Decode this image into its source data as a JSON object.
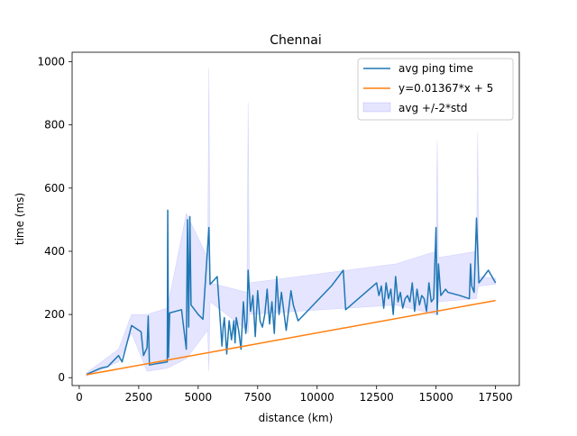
{
  "chart_data": {
    "type": "line",
    "title": "Chennai",
    "xlabel": "distance (km)",
    "ylabel": "time (ms)",
    "xlim": [
      -300,
      18500
    ],
    "ylim": [
      -25,
      1030
    ],
    "x_ticks": [
      0,
      2500,
      5000,
      7500,
      10000,
      12500,
      15000,
      17500
    ],
    "y_ticks": [
      0,
      200,
      400,
      600,
      800,
      1000
    ],
    "grid": false,
    "legend_position": "top-right",
    "series": [
      {
        "name": "avg ping time",
        "color": "#1f77b4",
        "style": "line",
        "x": [
          300,
          600,
          900,
          1200,
          1650,
          1800,
          2200,
          2600,
          2700,
          2850,
          2900,
          2950,
          3300,
          3700,
          3720,
          3750,
          3800,
          4300,
          4500,
          4550,
          4600,
          4650,
          4700,
          5000,
          5200,
          5450,
          5500,
          5800,
          6000,
          6050,
          6100,
          6200,
          6300,
          6400,
          6500,
          6550,
          6600,
          6700,
          6800,
          6900,
          7000,
          7050,
          7100,
          7200,
          7300,
          7400,
          7500,
          7600,
          7700,
          7800,
          7900,
          8000,
          8100,
          8200,
          8300,
          8400,
          8500,
          8700,
          8900,
          9000,
          9200,
          10600,
          11100,
          11200,
          12500,
          12600,
          12700,
          12800,
          12900,
          13000,
          13100,
          13200,
          13300,
          13400,
          13500,
          13600,
          13700,
          13800,
          13900,
          14000,
          14100,
          14200,
          14300,
          14400,
          14500,
          14600,
          14700,
          14800,
          14900,
          15000,
          15050,
          15100,
          15200,
          15300,
          15400,
          15500,
          16000,
          16400,
          16450,
          16500,
          16600,
          16700,
          16800,
          17200,
          17500
        ],
        "y": [
          10,
          20,
          30,
          35,
          70,
          50,
          165,
          145,
          70,
          95,
          195,
          40,
          45,
          50,
          530,
          65,
          205,
          215,
          90,
          500,
          160,
          510,
          230,
          200,
          185,
          475,
          295,
          320,
          100,
          160,
          190,
          75,
          180,
          120,
          180,
          110,
          190,
          150,
          90,
          240,
          140,
          180,
          340,
          210,
          260,
          130,
          275,
          180,
          160,
          200,
          280,
          170,
          240,
          140,
          320,
          200,
          270,
          150,
          275,
          230,
          180,
          290,
          340,
          215,
          300,
          260,
          290,
          220,
          300,
          250,
          280,
          200,
          320,
          240,
          270,
          220,
          250,
          260,
          240,
          300,
          210,
          280,
          230,
          260,
          250,
          210,
          300,
          240,
          250,
          475,
          200,
          360,
          260,
          270,
          280,
          270,
          260,
          250,
          360,
          290,
          270,
          505,
          300,
          340,
          300
        ]
      },
      {
        "name": "y=0.01367*x + 5",
        "color": "#ff7f0e",
        "style": "line",
        "x": [
          300,
          17500
        ],
        "y": [
          9.1,
          244.2
        ]
      },
      {
        "name": "avg +/-2*std",
        "color": "#0000ff",
        "fill_opacity": 0.1,
        "style": "band",
        "x": [
          300,
          1650,
          2200,
          2850,
          3700,
          4500,
          5400,
          5450,
          5500,
          7050,
          7100,
          7150,
          13300,
          15000,
          15050,
          15100,
          16700,
          16750,
          16800,
          17500
        ],
        "lower": [
          5,
          50,
          140,
          20,
          30,
          60,
          150,
          20,
          240,
          150,
          140,
          200,
          230,
          200,
          210,
          240,
          250,
          280,
          290,
          295
        ],
        "upper": [
          15,
          90,
          200,
          200,
          220,
          520,
          380,
          980,
          300,
          270,
          870,
          300,
          360,
          400,
          750,
          380,
          400,
          775,
          320,
          315
        ]
      }
    ]
  }
}
